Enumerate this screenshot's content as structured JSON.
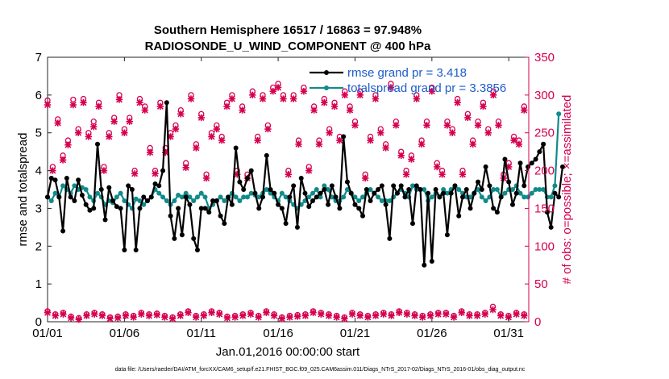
{
  "chart_data": {
    "type": "line",
    "title": "Southern Hemisphere 16517 / 16863 = 97.948%",
    "subtitle": "RADIOSONDE_U_WIND_COMPONENT @ 400 hPa",
    "xlabel": "Jan.01,2016 00:00:00 start",
    "ylabel": "rmse and totalspread",
    "y2label": "# of obs: o=possible; ×=assimilated",
    "footer": "data file: /Users/raeder/DAI/ATM_forcXX/CAM6_setup/f.e21.FHIST_BGC.f09_025.CAM6assim.011/Diags_NTrS_2017-02/Diags_NTrS_2016-01/obs_diag_output.nc",
    "xlim": [
      0,
      31.3
    ],
    "ylim": [
      0,
      7
    ],
    "y2lim": [
      0,
      350
    ],
    "xticks": [
      {
        "v": 0,
        "label": "01/01"
      },
      {
        "v": 5,
        "label": "01/06"
      },
      {
        "v": 10,
        "label": "01/11"
      },
      {
        "v": 15,
        "label": "01/16"
      },
      {
        "v": 20,
        "label": "01/21"
      },
      {
        "v": 25,
        "label": "01/26"
      },
      {
        "v": 30,
        "label": "01/31"
      }
    ],
    "yticks": [
      "0",
      "1",
      "2",
      "3",
      "4",
      "5",
      "6",
      "7"
    ],
    "y2ticks": [
      "0",
      "50",
      "100",
      "150",
      "200",
      "250",
      "300",
      "350"
    ],
    "colors": {
      "rmse": "#000000",
      "spread": "#128a8a",
      "obs": "#d6004f",
      "legend_text": "#1e5ccc"
    },
    "legend": [
      {
        "series": "rmse",
        "label": "rmse grand pr = 3.418"
      },
      {
        "series": "spread",
        "label": "totalspread grand pr = 3.3856"
      }
    ],
    "series": [
      {
        "name": "rmse",
        "x_start": 0,
        "x_step": 0.25,
        "values": [
          3.3,
          3.8,
          3.75,
          3.3,
          2.4,
          3.8,
          3.3,
          3.2,
          3.75,
          3.35,
          3.1,
          2.95,
          3.0,
          4.7,
          3.5,
          2.7,
          3.55,
          3.2,
          3.05,
          3.0,
          1.9,
          3.6,
          3.5,
          1.9,
          3.0,
          3.3,
          3.2,
          3.3,
          3.65,
          3.6,
          4.0,
          5.8,
          2.8,
          2.2,
          3.0,
          2.3,
          3.3,
          3.1,
          2.2,
          1.9,
          3.0,
          3.0,
          2.9,
          3.2,
          3.2,
          2.8,
          2.6,
          3.3,
          3.1,
          4.6,
          3.7,
          3.5,
          3.8,
          4.0,
          3.4,
          3.0,
          3.3,
          4.4,
          3.5,
          3.4,
          3.1,
          3.0,
          2.6,
          3.3,
          3.6,
          2.5,
          3.8,
          3.4,
          3.05,
          3.2,
          3.3,
          3.4,
          3.5,
          3.1,
          3.6,
          3.3,
          3.0,
          4.9,
          3.7,
          3.4,
          3.1,
          3.0,
          2.8,
          3.5,
          3.2,
          3.4,
          3.5,
          3.6,
          3.1,
          2.2,
          3.6,
          3.4,
          3.6,
          3.3,
          3.5,
          2.6,
          3.6,
          3.5,
          1.5,
          3.4,
          1.6,
          3.5,
          3.3,
          3.4,
          2.3,
          3.4,
          3.6,
          2.8,
          3.3,
          3.5,
          3.0,
          3.4,
          3.7,
          3.5,
          4.1,
          3.6,
          3.0,
          2.9,
          3.3,
          4.3,
          3.7,
          3.1,
          3.4,
          4.2,
          3.6,
          4.1,
          4.2,
          4.3,
          4.5,
          4.7,
          2.9,
          2.5,
          3.4,
          3.3,
          4.1
        ]
      },
      {
        "name": "totalspread",
        "x_start": 0,
        "x_step": 0.25,
        "values": [
          3.3,
          3.2,
          3.4,
          3.3,
          3.6,
          3.5,
          3.4,
          3.6,
          3.5,
          3.55,
          3.5,
          3.3,
          3.2,
          3.4,
          3.3,
          3.1,
          3.2,
          3.15,
          3.3,
          3.4,
          3.2,
          3.1,
          3.0,
          3.25,
          3.2,
          3.1,
          3.2,
          3.3,
          3.5,
          3.4,
          3.3,
          3.2,
          3.1,
          3.2,
          3.35,
          3.3,
          3.4,
          3.3,
          3.2,
          3.3,
          3.4,
          3.3,
          3.0,
          3.1,
          3.2,
          3.3,
          3.2,
          3.3,
          3.4,
          3.3,
          3.2,
          3.3,
          3.3,
          3.4,
          3.35,
          3.3,
          3.4,
          3.5,
          3.4,
          3.3,
          3.2,
          3.4,
          3.3,
          3.2,
          3.1,
          3.0,
          3.1,
          3.2,
          3.3,
          3.4,
          3.5,
          3.3,
          3.6,
          3.5,
          3.3,
          3.2,
          3.2,
          3.3,
          3.5,
          3.4,
          3.3,
          3.2,
          3.3,
          3.4,
          3.5,
          3.4,
          3.3,
          3.2,
          3.2,
          3.2,
          3.3,
          3.4,
          3.5,
          3.4,
          3.3,
          3.6,
          3.5,
          3.5,
          3.5,
          3.2,
          3.3,
          3.4,
          3.3,
          3.5,
          3.4,
          3.5,
          3.6,
          3.5,
          3.4,
          3.3,
          3.3,
          3.4,
          3.5,
          3.3,
          3.2,
          3.3,
          3.5,
          3.5,
          3.3,
          3.4,
          3.5,
          3.5,
          3.6,
          3.4,
          3.3,
          3.3,
          3.4,
          3.5,
          3.5,
          3.5,
          3.3,
          3.3,
          3.6,
          5.5
        ]
      },
      {
        "name": "possible_obs",
        "values": [
          293,
          205,
          268,
          220,
          240,
          294,
          255,
          295,
          250,
          265,
          290,
          205,
          250,
          270,
          300,
          255,
          270,
          200,
          295,
          285,
          230,
          200,
          290,
          230,
          250,
          260,
          280,
          210,
          300,
          235,
          275,
          195,
          250,
          260,
          245,
          290,
          300,
          200,
          285,
          195,
          305,
          245,
          300,
          260,
          310,
          315,
          300,
          200,
          300,
          240,
          310,
          205,
          285,
          240,
          295,
          255,
          290,
          245,
          305,
          285,
          265,
          305,
          195,
          245,
          300,
          255,
          235,
          315,
          265,
          225,
          200,
          220,
          300,
          240,
          265,
          310,
          210,
          200,
          265,
          255,
          295,
          200,
          275,
          240,
          265,
          290,
          255,
          305,
          265,
          195,
          210,
          245,
          240,
          285
        ]
      },
      {
        "name": "assimilated_obs",
        "values": [
          287,
          200,
          263,
          214,
          234,
          287,
          250,
          290,
          245,
          258,
          285,
          200,
          245,
          265,
          294,
          250,
          265,
          196,
          290,
          280,
          224,
          196,
          285,
          224,
          245,
          255,
          275,
          204,
          295,
          230,
          270,
          190,
          245,
          255,
          240,
          285,
          295,
          195,
          280,
          190,
          300,
          240,
          295,
          255,
          305,
          310,
          295,
          195,
          295,
          235,
          305,
          200,
          280,
          235,
          290,
          250,
          285,
          240,
          300,
          280,
          260,
          300,
          190,
          240,
          295,
          250,
          230,
          310,
          260,
          220,
          195,
          215,
          295,
          235,
          260,
          305,
          205,
          195,
          260,
          250,
          290,
          195,
          270,
          235,
          260,
          285,
          250,
          300,
          260,
          190,
          205,
          240,
          235,
          280
        ]
      },
      {
        "name": "low_possible_obs",
        "values": [
          14,
          10,
          12,
          7,
          5,
          10,
          12,
          10,
          6,
          7,
          10,
          8,
          12,
          10,
          11,
          8,
          6,
          10,
          14,
          8,
          10,
          14,
          12,
          7,
          8,
          10,
          12,
          8,
          14,
          10,
          6,
          8,
          9,
          10,
          14,
          12,
          10,
          8,
          6,
          12,
          10,
          8,
          10,
          12,
          10,
          14,
          12,
          10,
          8,
          10,
          12,
          12,
          8,
          14,
          10,
          10,
          12,
          20,
          10,
          8,
          12,
          10
        ]
      },
      {
        "name": "low_assimilated_obs",
        "values": [
          12,
          8,
          10,
          5,
          3,
          8,
          10,
          8,
          4,
          5,
          8,
          6,
          10,
          8,
          9,
          6,
          4,
          8,
          12,
          6,
          8,
          12,
          10,
          5,
          6,
          8,
          10,
          6,
          12,
          8,
          4,
          6,
          7,
          8,
          12,
          10,
          8,
          6,
          4,
          10,
          8,
          6,
          8,
          10,
          8,
          12,
          10,
          8,
          6,
          8,
          10,
          10,
          6,
          12,
          8,
          8,
          10,
          16,
          8,
          6,
          10,
          8
        ]
      }
    ]
  }
}
